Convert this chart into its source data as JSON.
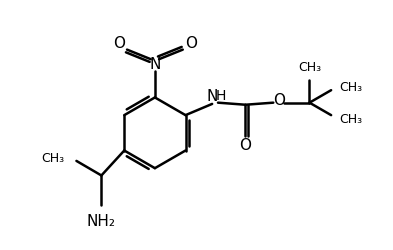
{
  "bg_color": "#ffffff",
  "line_color": "#000000",
  "line_width": 1.8,
  "font_size": 10,
  "figsize": [
    3.93,
    2.51
  ],
  "dpi": 100,
  "xlim": [
    0,
    9
  ],
  "ylim": [
    0,
    6
  ]
}
